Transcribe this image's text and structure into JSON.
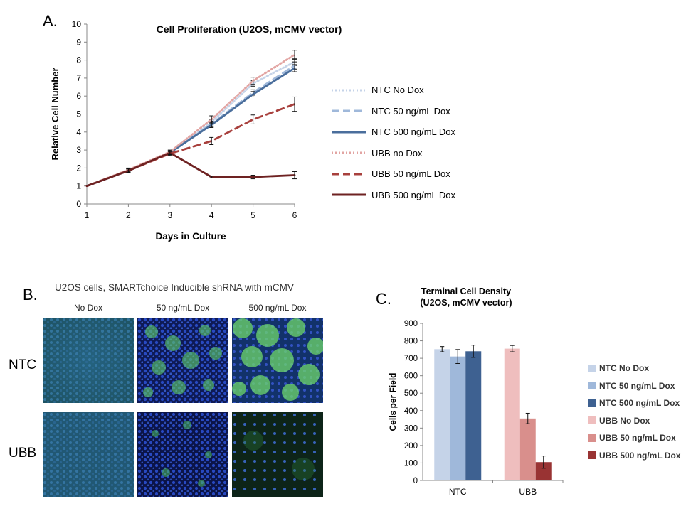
{
  "panel_labels": {
    "a": "A.",
    "b": "B.",
    "c": "C."
  },
  "chart_data": [
    {
      "type": "line",
      "title": "Cell Proliferation (U2OS, mCMV vector)",
      "xlabel": "Days in Culture",
      "ylabel": "Relative Cell Number",
      "x": [
        1,
        2,
        3,
        4,
        5,
        6
      ],
      "xlim": [
        1,
        6
      ],
      "ylim": [
        0,
        10
      ],
      "yticks": [
        0,
        1,
        2,
        3,
        4,
        5,
        6,
        7,
        8,
        9,
        10
      ],
      "legend_position": "right",
      "series": [
        {
          "name": "NTC No Dox",
          "values": [
            1,
            1.85,
            2.85,
            4.55,
            6.7,
            7.9
          ],
          "errors": [
            0,
            0.1,
            0.1,
            0.15,
            0.15,
            0.2
          ],
          "color": "#c5d3e8",
          "dash": "dotted"
        },
        {
          "name": "NTC 50 ng/mL Dox",
          "values": [
            1,
            1.85,
            2.85,
            4.45,
            6.2,
            7.7
          ],
          "errors": [
            0,
            0.1,
            0.1,
            0.15,
            0.15,
            0.2
          ],
          "color": "#9fb8da",
          "dash": "dashed"
        },
        {
          "name": "NTC 500 ng/mL Dox",
          "values": [
            1,
            1.85,
            2.85,
            4.4,
            6.1,
            7.55
          ],
          "errors": [
            0,
            0.1,
            0.1,
            0.15,
            0.15,
            0.2
          ],
          "color": "#4a6e9c",
          "dash": "solid"
        },
        {
          "name": "UBB no Dox",
          "values": [
            1,
            1.9,
            2.9,
            4.7,
            6.85,
            8.3
          ],
          "errors": [
            0,
            0.1,
            0.1,
            0.2,
            0.2,
            0.25
          ],
          "color": "#e2a4a2",
          "dash": "dotted"
        },
        {
          "name": "UBB 50 ng/mL Dox",
          "values": [
            1,
            1.85,
            2.8,
            3.5,
            4.7,
            5.55
          ],
          "errors": [
            0,
            0.1,
            0.1,
            0.2,
            0.25,
            0.4
          ],
          "color": "#a8403d",
          "dash": "dashed"
        },
        {
          "name": "UBB 500 ng/mL Dox",
          "values": [
            1,
            1.85,
            2.85,
            1.5,
            1.5,
            1.6
          ],
          "errors": [
            0,
            0.1,
            0.1,
            0.05,
            0.1,
            0.2
          ],
          "color": "#6e2222",
          "dash": "solid"
        }
      ]
    },
    {
      "type": "bar",
      "title": "Terminal Cell Density (U2OS, mCMV vector)",
      "title_lines": [
        "Terminal Cell Density",
        "(U2OS, mCMV vector)"
      ],
      "xlabel": "",
      "ylabel": "Cells per Field",
      "categories": [
        "NTC",
        "UBB"
      ],
      "ylim": [
        0,
        900
      ],
      "yticks": [
        0,
        100,
        200,
        300,
        400,
        500,
        600,
        700,
        800,
        900
      ],
      "legend_position": "right",
      "series": [
        {
          "name": "NTC No Dox",
          "values": [
            752,
            null
          ],
          "errors": [
            15,
            0
          ],
          "color": "#c5d3e8"
        },
        {
          "name": "NTC 50 ng/mL Dox",
          "values": [
            710,
            null
          ],
          "errors": [
            40,
            0
          ],
          "color": "#9fb8da"
        },
        {
          "name": "NTC 500 ng/mL Dox",
          "values": [
            740,
            null
          ],
          "errors": [
            35,
            0
          ],
          "color": "#3e6191"
        },
        {
          "name": "UBB No Dox",
          "values": [
            null,
            755
          ],
          "errors": [
            0,
            18
          ],
          "color": "#efbebe"
        },
        {
          "name": "UBB 50 ng/mL Dox",
          "values": [
            null,
            355
          ],
          "errors": [
            0,
            30
          ],
          "color": "#d98f8c"
        },
        {
          "name": "UBB 500 ng/mL Dox",
          "values": [
            null,
            105
          ],
          "errors": [
            0,
            35
          ],
          "color": "#993333"
        }
      ]
    }
  ],
  "microscopy": {
    "title": "U2OS cells, SMARTchoice Inducible shRNA with mCMV",
    "columns": [
      "No Dox",
      "50 ng/mL Dox",
      "500 ng/mL Dox"
    ],
    "rows": [
      "NTC",
      "UBB"
    ]
  }
}
